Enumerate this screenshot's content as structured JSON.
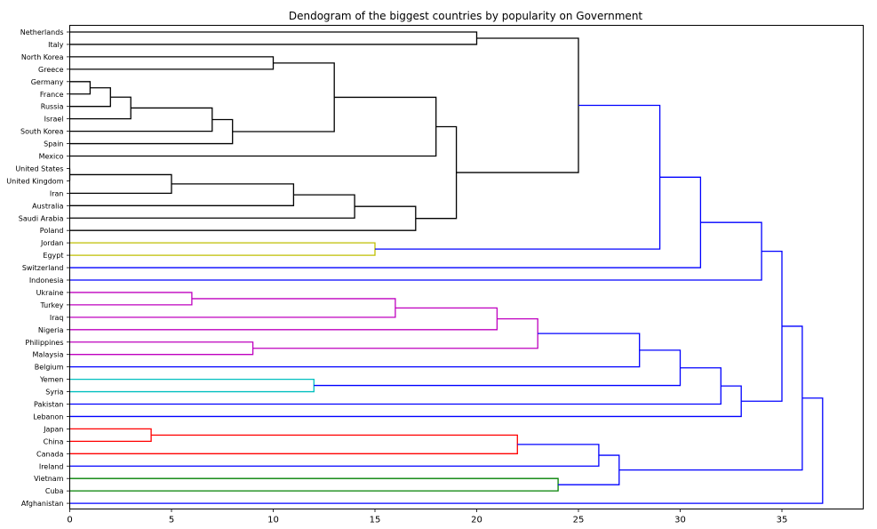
{
  "chart_data": {
    "type": "dendrogram",
    "title": "Dendogram of the biggest countries by popularity on Government",
    "orientation": "right",
    "xlim": [
      0,
      39
    ],
    "xticks": [
      0,
      5,
      10,
      15,
      20,
      25,
      30,
      35
    ],
    "grid": false,
    "leaves": [
      "Netherlands",
      "Italy",
      "North Korea",
      "Greece",
      "Germany",
      "France",
      "Russia",
      "Israel",
      "South Korea",
      "Spain",
      "Mexico",
      "United States",
      "United Kingdom",
      "Iran",
      "Australia",
      "Saudi Arabia",
      "Poland",
      "Jordan",
      "Egypt",
      "Switzerland",
      "Indonesia",
      "Ukraine",
      "Turkey",
      "Iraq",
      "Nigeria",
      "Philippines",
      "Malaysia",
      "Belgium",
      "Yemen",
      "Syria",
      "Pakistan",
      "Lebanon",
      "Japan",
      "China",
      "Canada",
      "Ireland",
      "Vietnam",
      "Cuba",
      "Afghanistan"
    ],
    "colors": {
      "black": "#000000",
      "blue": "#0000ff",
      "yellow": "#bfbf00",
      "magenta": "#bf00bf",
      "cyan": "#00bfbf",
      "red": "#ff0000",
      "green": "#008000"
    },
    "merges": [
      {
        "a": "Germany",
        "b": "France",
        "height": 1,
        "color": "black"
      },
      {
        "a": "M1",
        "b": "Russia",
        "height": 2,
        "color": "black"
      },
      {
        "a": "M2",
        "b": "Israel",
        "height": 3,
        "color": "black"
      },
      {
        "a": "M3",
        "b": "South Korea",
        "height": 7,
        "color": "black"
      },
      {
        "a": "M4",
        "b": "Spain",
        "height": 8,
        "color": "black"
      },
      {
        "a": "North Korea",
        "b": "Greece",
        "height": 10,
        "color": "black"
      },
      {
        "a": "M6",
        "b": "M5",
        "height": 13,
        "color": "black"
      },
      {
        "a": "M7",
        "b": "Mexico",
        "height": 18,
        "color": "black"
      },
      {
        "a": "United States",
        "b": "United Kingdom",
        "height": 0,
        "color": "black"
      },
      {
        "a": "M9",
        "b": "Iran",
        "height": 5,
        "color": "black"
      },
      {
        "a": "M10",
        "b": "Australia",
        "height": 11,
        "color": "black"
      },
      {
        "a": "M11",
        "b": "Saudi Arabia",
        "height": 14,
        "color": "black"
      },
      {
        "a": "M12",
        "b": "Poland",
        "height": 17,
        "color": "black"
      },
      {
        "a": "M8",
        "b": "M13",
        "height": 19,
        "color": "black"
      },
      {
        "a": "Netherlands",
        "b": "Italy",
        "height": 20,
        "color": "black"
      },
      {
        "a": "M15",
        "b": "M14",
        "height": 25,
        "color": "black"
      },
      {
        "a": "Jordan",
        "b": "Egypt",
        "height": 15,
        "color": "yellow"
      },
      {
        "a": "M16",
        "b": "M17",
        "height": 29,
        "color": "blue"
      },
      {
        "a": "M18",
        "b": "Switzerland",
        "height": 31,
        "color": "blue"
      },
      {
        "a": "M19",
        "b": "Indonesia",
        "height": 34,
        "color": "blue"
      },
      {
        "a": "Ukraine",
        "b": "Turkey",
        "height": 6,
        "color": "magenta"
      },
      {
        "a": "M21",
        "b": "Iraq",
        "height": 16,
        "color": "magenta"
      },
      {
        "a": "M22",
        "b": "Nigeria",
        "height": 21,
        "color": "magenta"
      },
      {
        "a": "Philippines",
        "b": "Malaysia",
        "height": 9,
        "color": "magenta"
      },
      {
        "a": "M23",
        "b": "M24",
        "height": 23,
        "color": "magenta"
      },
      {
        "a": "M25",
        "b": "Belgium",
        "height": 28,
        "color": "blue"
      },
      {
        "a": "Yemen",
        "b": "Syria",
        "height": 12,
        "color": "cyan"
      },
      {
        "a": "M26",
        "b": "M27",
        "height": 30,
        "color": "blue"
      },
      {
        "a": "M28",
        "b": "Pakistan",
        "height": 32,
        "color": "blue"
      },
      {
        "a": "M29",
        "b": "Lebanon",
        "height": 33,
        "color": "blue"
      },
      {
        "a": "M20",
        "b": "M30",
        "height": 35,
        "color": "blue"
      },
      {
        "a": "Japan",
        "b": "China",
        "height": 4,
        "color": "red"
      },
      {
        "a": "M32",
        "b": "Canada",
        "height": 22,
        "color": "red"
      },
      {
        "a": "M33",
        "b": "Ireland",
        "height": 26,
        "color": "blue"
      },
      {
        "a": "Vietnam",
        "b": "Cuba",
        "height": 24,
        "color": "green"
      },
      {
        "a": "M34",
        "b": "M35",
        "height": 27,
        "color": "blue"
      },
      {
        "a": "M31",
        "b": "M36",
        "height": 36,
        "color": "blue"
      },
      {
        "a": "M37",
        "b": "Afghanistan",
        "height": 37,
        "color": "blue"
      }
    ]
  }
}
